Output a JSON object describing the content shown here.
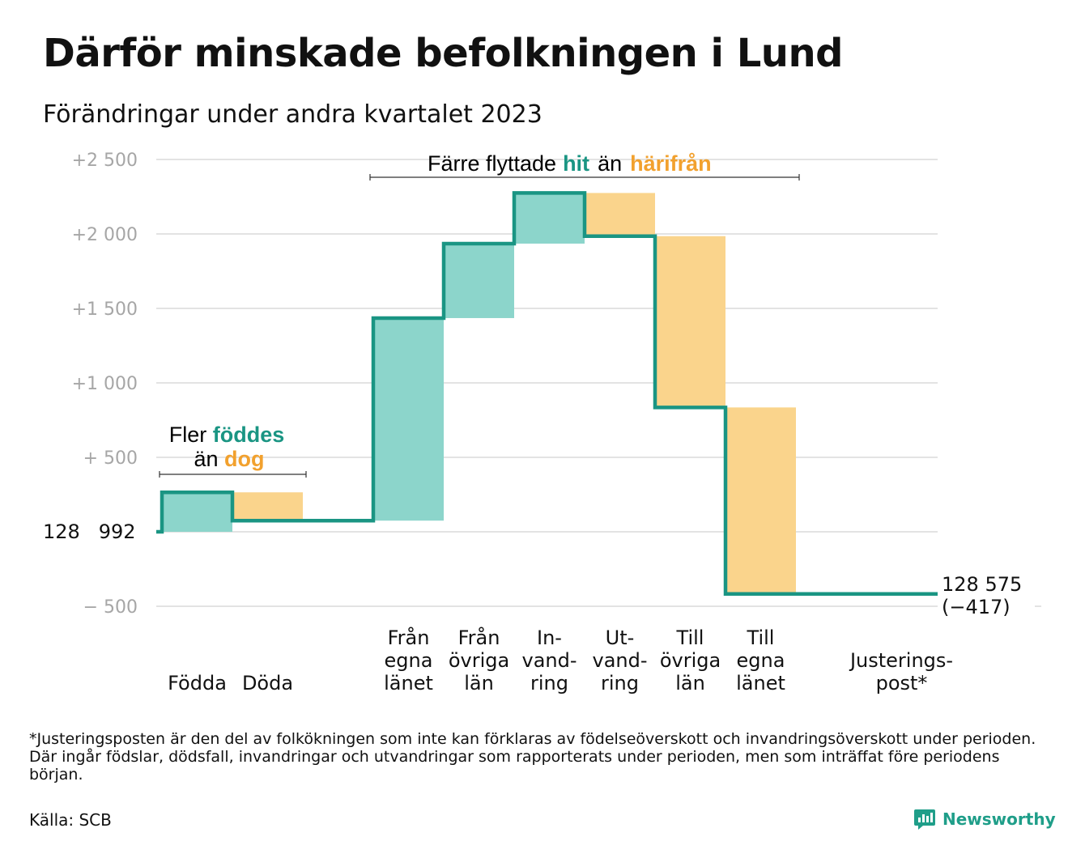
{
  "title": "Därför minskade befolkningen i Lund",
  "subtitle": "Förändringar under andra kvartalet 2023",
  "footnote": "*Justeringsposten är den del av folkökningen som inte kan förklaras av födelseöverskott och invandringsöverskott under perioden. Där ingår födslar, dödsfall, invandringar och utvandringar som rapporterats under perioden, men som inträffat före periodens början.",
  "source": "Källa: SCB",
  "brand": "Newsworthy",
  "colors": {
    "increase": "#8cd5cb",
    "decrease": "#fad48c",
    "line": "#1a9583",
    "teal_text": "#1a9583",
    "orange_text": "#f2a12e",
    "grid": "#e3e3e3",
    "tick": "#a6a6a6"
  },
  "annotations": {
    "births": {
      "line1_pre": "Fler ",
      "line1_hl": "föddes",
      "line2_pre": "än ",
      "line2_hl": "dog"
    },
    "moves": {
      "pre": "Färre flyttade",
      "hl1": "hit",
      "mid": "än",
      "hl2": "härifrån"
    }
  },
  "start_label": "128   992",
  "end_label": {
    "value": "128 575",
    "change": "(−417)"
  },
  "chart_data": {
    "type": "waterfall",
    "title": "Därför minskade befolkningen i Lund",
    "subtitle": "Förändringar under andra kvartalet 2023",
    "baseline_value": 128992,
    "end_value": 128575,
    "total_change": -417,
    "ylim": [
      -500,
      2500
    ],
    "yticks": [
      {
        "value": -500,
        "label": "−  500"
      },
      {
        "value": 0,
        "label": ""
      },
      {
        "value": 500,
        "label": "+  500"
      },
      {
        "value": 1000,
        "label": "+1   000"
      },
      {
        "value": 1500,
        "label": "+1   500"
      },
      {
        "value": 2000,
        "label": "+2   000"
      },
      {
        "value": 2500,
        "label": "+2   500"
      }
    ],
    "grid": true,
    "steps": [
      {
        "label": [
          "Födda"
        ],
        "change": 265,
        "type": "increase"
      },
      {
        "label": [
          "Döda"
        ],
        "change": -190,
        "type": "decrease"
      },
      {
        "label": [
          "Från",
          "egna",
          "länet"
        ],
        "change": 1360,
        "type": "increase"
      },
      {
        "label": [
          "Från",
          "övriga",
          "län"
        ],
        "change": 500,
        "type": "increase"
      },
      {
        "label": [
          "In-",
          "vand-",
          "ring"
        ],
        "change": 340,
        "type": "increase"
      },
      {
        "label": [
          "Ut-",
          "vand-",
          "ring"
        ],
        "change": -290,
        "type": "decrease"
      },
      {
        "label": [
          "Till",
          "övriga",
          "län"
        ],
        "change": -1150,
        "type": "decrease"
      },
      {
        "label": [
          "Till",
          "egna",
          "länet"
        ],
        "change": -1252,
        "type": "decrease"
      },
      {
        "label": [
          "Justerings-",
          "post*"
        ],
        "change": 0,
        "type": "adjustment"
      }
    ]
  }
}
